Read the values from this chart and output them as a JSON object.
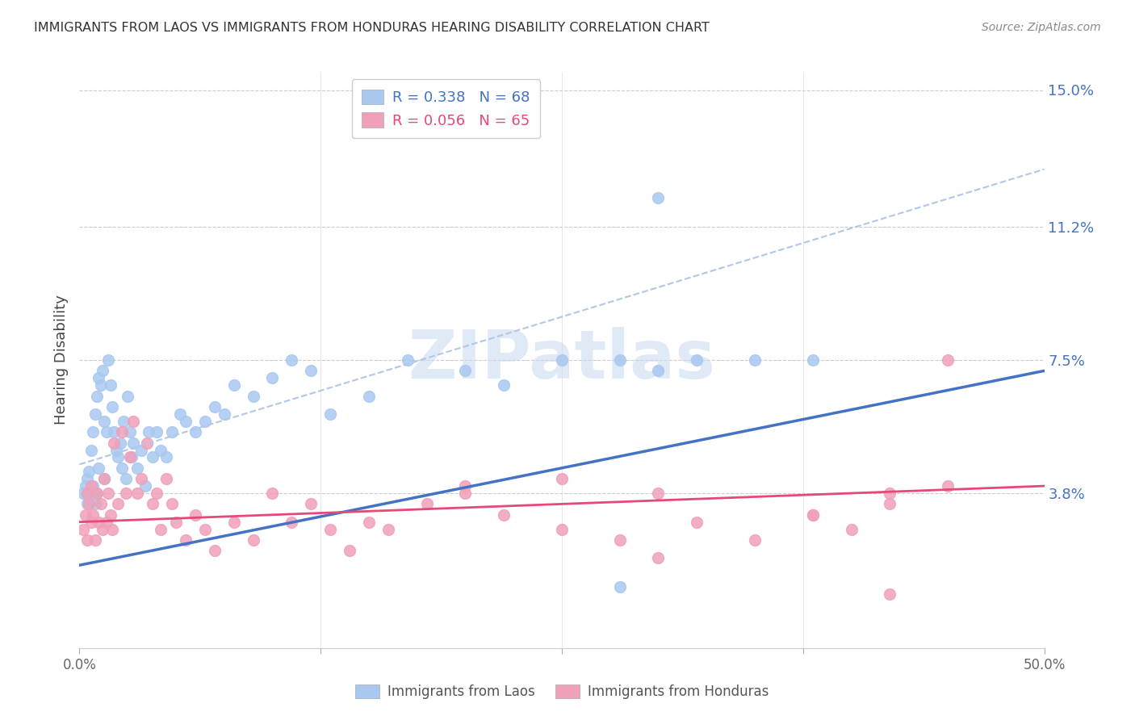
{
  "title": "IMMIGRANTS FROM LAOS VS IMMIGRANTS FROM HONDURAS HEARING DISABILITY CORRELATION CHART",
  "source": "Source: ZipAtlas.com",
  "ylabel": "Hearing Disability",
  "yticks": [
    0.0,
    0.038,
    0.075,
    0.112,
    0.15
  ],
  "ytick_labels": [
    "",
    "3.8%",
    "7.5%",
    "11.2%",
    "15.0%"
  ],
  "xlim": [
    0.0,
    0.5
  ],
  "ylim": [
    -0.005,
    0.155
  ],
  "laos_color": "#A8C8F0",
  "honduras_color": "#F0A0B8",
  "laos_line_color": "#4472C4",
  "honduras_line_color": "#E84878",
  "dash_color": "#B0C8E8",
  "watermark_text": "ZIPatlas",
  "legend_line1": "R = 0.338   N = 68",
  "legend_line2": "R = 0.056   N = 65",
  "legend_label1": "Immigrants from Laos",
  "legend_label2": "Immigrants from Honduras",
  "laos_line_x": [
    0.0,
    0.5
  ],
  "laos_line_y": [
    0.018,
    0.072
  ],
  "honduras_line_x": [
    0.0,
    0.5
  ],
  "honduras_line_y": [
    0.03,
    0.04
  ],
  "dash_line_x": [
    0.0,
    0.5
  ],
  "dash_line_y": [
    0.046,
    0.128
  ],
  "laos_x": [
    0.002,
    0.003,
    0.004,
    0.004,
    0.005,
    0.005,
    0.006,
    0.006,
    0.007,
    0.007,
    0.008,
    0.008,
    0.009,
    0.009,
    0.01,
    0.01,
    0.011,
    0.012,
    0.013,
    0.013,
    0.014,
    0.015,
    0.016,
    0.017,
    0.018,
    0.019,
    0.02,
    0.021,
    0.022,
    0.023,
    0.024,
    0.025,
    0.026,
    0.027,
    0.028,
    0.03,
    0.032,
    0.034,
    0.036,
    0.038,
    0.04,
    0.042,
    0.045,
    0.048,
    0.052,
    0.055,
    0.06,
    0.065,
    0.07,
    0.075,
    0.08,
    0.09,
    0.1,
    0.11,
    0.12,
    0.13,
    0.15,
    0.17,
    0.2,
    0.22,
    0.25,
    0.28,
    0.3,
    0.32,
    0.35,
    0.38,
    0.28,
    0.3
  ],
  "laos_y": [
    0.038,
    0.04,
    0.035,
    0.042,
    0.036,
    0.044,
    0.038,
    0.05,
    0.055,
    0.04,
    0.06,
    0.035,
    0.065,
    0.038,
    0.07,
    0.045,
    0.068,
    0.072,
    0.058,
    0.042,
    0.055,
    0.075,
    0.068,
    0.062,
    0.055,
    0.05,
    0.048,
    0.052,
    0.045,
    0.058,
    0.042,
    0.065,
    0.055,
    0.048,
    0.052,
    0.045,
    0.05,
    0.04,
    0.055,
    0.048,
    0.055,
    0.05,
    0.048,
    0.055,
    0.06,
    0.058,
    0.055,
    0.058,
    0.062,
    0.06,
    0.068,
    0.065,
    0.07,
    0.075,
    0.072,
    0.06,
    0.065,
    0.075,
    0.072,
    0.068,
    0.075,
    0.075,
    0.072,
    0.075,
    0.075,
    0.075,
    0.012,
    0.12
  ],
  "honduras_x": [
    0.002,
    0.003,
    0.004,
    0.004,
    0.005,
    0.006,
    0.006,
    0.007,
    0.008,
    0.009,
    0.01,
    0.011,
    0.012,
    0.013,
    0.014,
    0.015,
    0.016,
    0.017,
    0.018,
    0.02,
    0.022,
    0.024,
    0.026,
    0.028,
    0.03,
    0.032,
    0.035,
    0.038,
    0.04,
    0.042,
    0.045,
    0.048,
    0.05,
    0.055,
    0.06,
    0.065,
    0.07,
    0.08,
    0.09,
    0.1,
    0.11,
    0.12,
    0.13,
    0.14,
    0.15,
    0.16,
    0.18,
    0.2,
    0.22,
    0.25,
    0.28,
    0.3,
    0.32,
    0.35,
    0.38,
    0.4,
    0.42,
    0.45,
    0.42,
    0.38,
    0.3,
    0.25,
    0.2,
    0.42,
    0.45
  ],
  "honduras_y": [
    0.028,
    0.032,
    0.038,
    0.025,
    0.035,
    0.03,
    0.04,
    0.032,
    0.025,
    0.038,
    0.03,
    0.035,
    0.028,
    0.042,
    0.03,
    0.038,
    0.032,
    0.028,
    0.052,
    0.035,
    0.055,
    0.038,
    0.048,
    0.058,
    0.038,
    0.042,
    0.052,
    0.035,
    0.038,
    0.028,
    0.042,
    0.035,
    0.03,
    0.025,
    0.032,
    0.028,
    0.022,
    0.03,
    0.025,
    0.038,
    0.03,
    0.035,
    0.028,
    0.022,
    0.03,
    0.028,
    0.035,
    0.04,
    0.032,
    0.028,
    0.025,
    0.038,
    0.03,
    0.025,
    0.032,
    0.028,
    0.035,
    0.04,
    0.038,
    0.032,
    0.02,
    0.042,
    0.038,
    0.01,
    0.075
  ]
}
